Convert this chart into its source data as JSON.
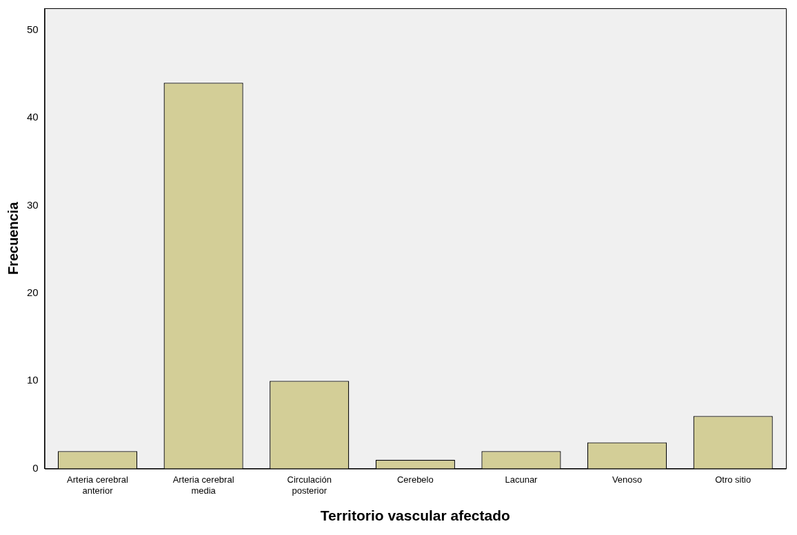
{
  "chart_data": {
    "type": "bar",
    "xlabel": "Territorio vascular afectado",
    "ylabel": "Frecuencia",
    "categories": [
      "Arteria cerebral anterior",
      "Arteria cerebral media",
      "Circulación posterior",
      "Cerebelo",
      "Lacunar",
      "Venoso",
      "Otro sitio"
    ],
    "values": [
      2,
      44,
      10,
      1,
      2,
      3,
      6
    ],
    "color": "#d3ce97",
    "ylim": [
      0,
      52.5
    ],
    "yticks": [
      0,
      10,
      20,
      30,
      40,
      50
    ],
    "grid": false,
    "legend": false
  }
}
